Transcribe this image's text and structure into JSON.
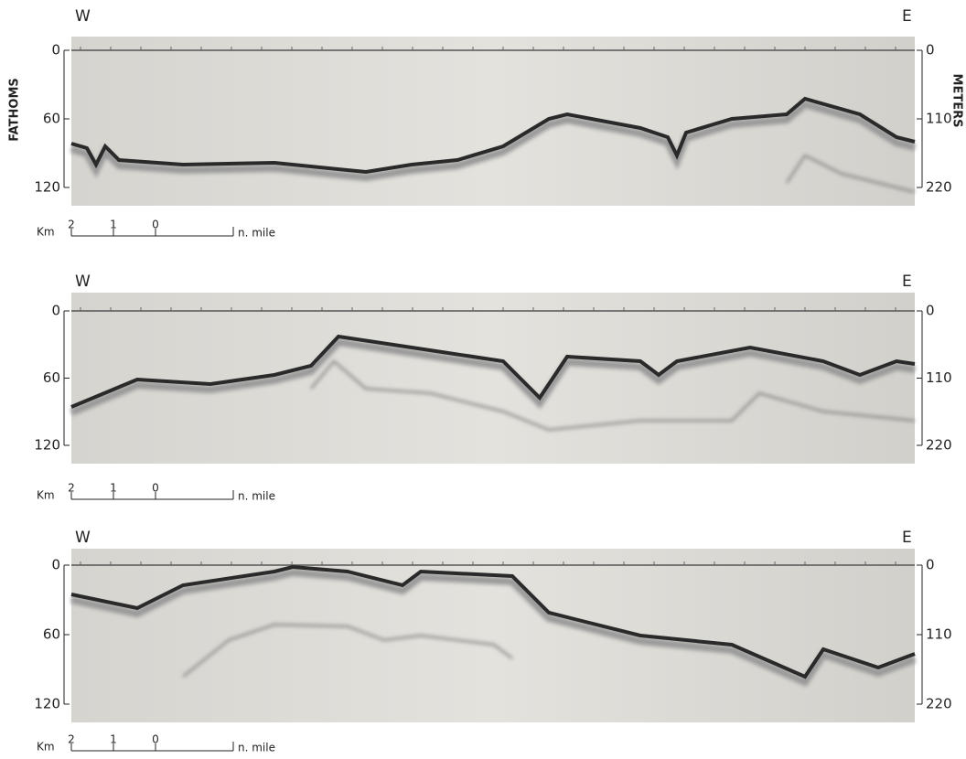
{
  "figure": {
    "left_axis_label": "FATHOMS",
    "right_axis_label": "METERS",
    "panels": [
      {
        "west": "W",
        "east": "E",
        "left_ticks": [
          "0",
          "60",
          "120"
        ],
        "right_ticks": [
          "0",
          "110",
          "220"
        ],
        "scale": {
          "unit": "Km",
          "km_labels": [
            "2",
            "1",
            "0"
          ],
          "nmile_label": "n. mile"
        }
      },
      {
        "west": "W",
        "east": "E",
        "left_ticks": [
          "0",
          "60",
          "120"
        ],
        "right_ticks": [
          "0",
          "110",
          "220"
        ],
        "scale": {
          "unit": "Km",
          "km_labels": [
            "2",
            "1",
            "0"
          ],
          "nmile_label": "n. mile"
        }
      },
      {
        "west": "W",
        "east": "E",
        "left_ticks": [
          "0",
          "60",
          "120"
        ],
        "right_ticks": [
          "0",
          "110",
          "220"
        ],
        "scale": {
          "unit": "Km",
          "km_labels": [
            "2",
            "1",
            "0"
          ],
          "nmile_label": "n. mile"
        }
      }
    ]
  }
}
